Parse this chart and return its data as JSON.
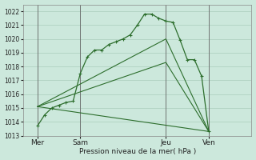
{
  "xlabel": "Pression niveau de la mer( hPa )",
  "bg_color": "#cce8dc",
  "grid_color": "#aaccbb",
  "line_color": "#2d6e2d",
  "ylim": [
    1013,
    1022.5
  ],
  "yticks": [
    1013,
    1014,
    1015,
    1016,
    1017,
    1018,
    1019,
    1020,
    1021,
    1022
  ],
  "xlim": [
    0,
    16
  ],
  "x_tick_positions": [
    1,
    4,
    10,
    13
  ],
  "x_tick_labels": [
    "Mer",
    "Sam",
    "Jeu",
    "Ven"
  ],
  "x_vlines": [
    1,
    4,
    10,
    13
  ],
  "line1_x": [
    1,
    1.5,
    2,
    2.5,
    3,
    3.5,
    4,
    4.5,
    5,
    5.5,
    6,
    6.5,
    7,
    7.5,
    8,
    8.5,
    9,
    9.5,
    10,
    10.5,
    11,
    11.5,
    12,
    12.5,
    13
  ],
  "line1_y": [
    1013.7,
    1014.5,
    1015.0,
    1015.2,
    1015.4,
    1015.5,
    1017.5,
    1018.7,
    1019.2,
    1019.2,
    1019.6,
    1019.8,
    1020.0,
    1020.3,
    1021.0,
    1021.8,
    1021.8,
    1021.5,
    1021.3,
    1021.2,
    1019.9,
    1018.5,
    1018.5,
    1017.3,
    1013.3
  ],
  "line2_x": [
    1,
    10,
    13
  ],
  "line2_y": [
    1015.1,
    1020.0,
    1013.3
  ],
  "line3_x": [
    1,
    10,
    13
  ],
  "line3_y": [
    1015.1,
    1018.3,
    1013.3
  ],
  "line4_x": [
    1,
    13
  ],
  "line4_y": [
    1015.1,
    1013.3
  ]
}
